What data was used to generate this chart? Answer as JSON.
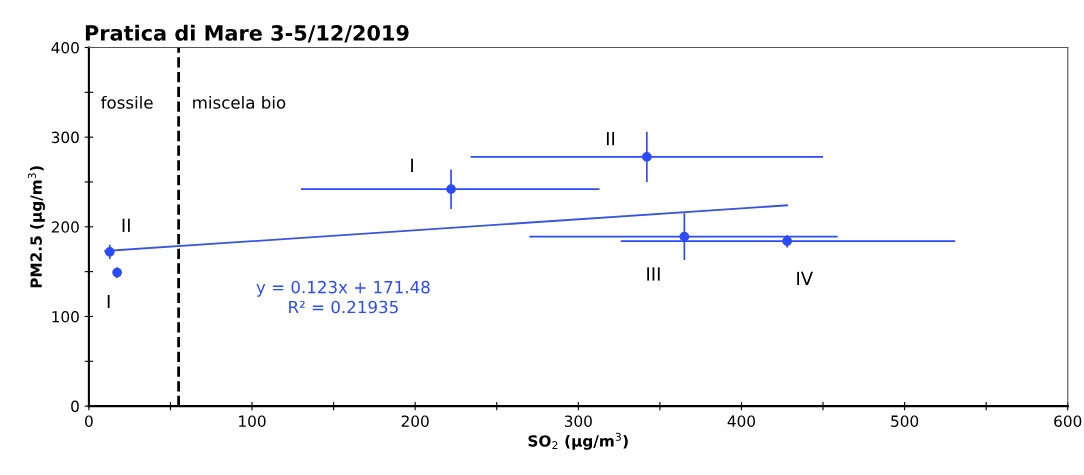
{
  "chart_data": {
    "type": "scatter",
    "title": "Pratica di Mare 3-5/12/2019",
    "xlabel": "SO$_{2}$ (µg/m$^{3}$)",
    "ylabel": "PM2.5 (µg/m$^{3}$)",
    "xlim": [
      0,
      600
    ],
    "ylim": [
      0,
      400
    ],
    "xticks": [
      0,
      {
        "value": 50,
        "label": null
      },
      100,
      {
        "value": 150,
        "label": null
      },
      200,
      {
        "value": 250,
        "label": null
      },
      300,
      {
        "value": 350,
        "label": null
      },
      400,
      {
        "value": 450,
        "label": null
      },
      500,
      {
        "value": 550,
        "label": null
      },
      600
    ],
    "yticks": [
      0,
      {
        "value": 50,
        "label": null
      },
      100,
      {
        "value": 150,
        "label": null
      },
      200,
      {
        "value": 250,
        "label": null
      },
      300,
      {
        "value": 350,
        "label": null
      },
      400
    ],
    "grid": false,
    "marker": "circle",
    "series": [
      {
        "color": "#2b4bff",
        "x": [
          12.8,
          17.3,
          222,
          342,
          365,
          428
        ],
        "values": [
          172,
          149,
          242,
          278,
          189,
          184
        ],
        "errors": [
          8,
          6,
          22,
          28,
          26,
          7
        ],
        "xerrors": [
          null,
          null,
          [
            130,
            313
          ],
          [
            234,
            450
          ],
          [
            270,
            459
          ],
          [
            326,
            531
          ]
        ]
      },
      {
        "type": "line",
        "marker": "none",
        "color": "#3a55d9",
        "x": [
          10,
          428
        ],
        "values": [
          173,
          224
        ]
      }
    ],
    "ref_lines": [
      {
        "axis": "x",
        "value": 55,
        "label": null,
        "color": "#000000",
        "line_style": "dashed"
      }
    ],
    "annotations": [
      {
        "text": "II",
        "x": 12.8,
        "y": 172
      },
      {
        "text": "I",
        "x": 17.3,
        "y": 149
      },
      {
        "text": "I",
        "x": 222,
        "y": 242
      },
      {
        "text": "II",
        "x": 342,
        "y": 278
      },
      {
        "text": "III",
        "x": 365,
        "y": 189
      },
      {
        "text": "IV",
        "x": 428,
        "y": 184
      },
      "fossile",
      "miscela bio",
      "y = 0.123x + 171.48\nR² = 0.21935"
    ]
  }
}
